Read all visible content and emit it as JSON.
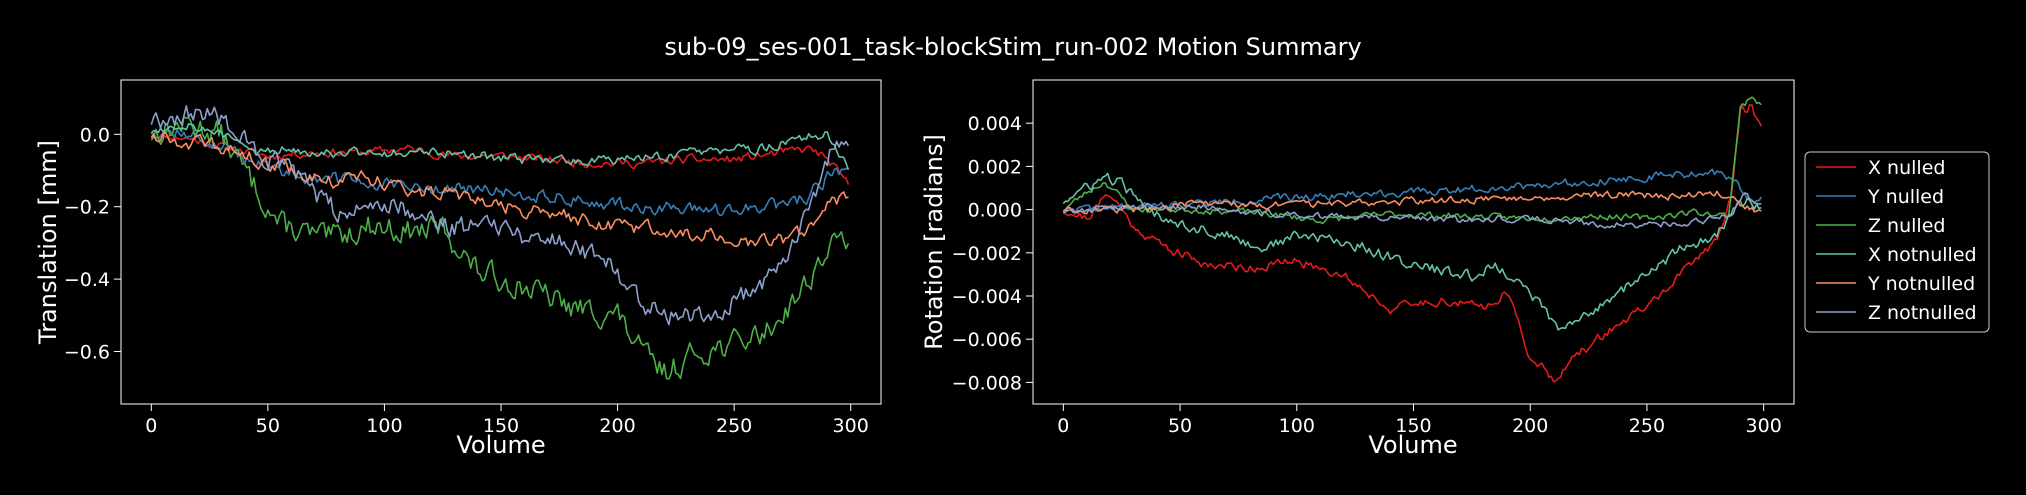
{
  "figure": {
    "title": "sub-09_ses-001_task-blockStim_run-002 Motion Summary"
  },
  "chart_data": [
    {
      "type": "line",
      "xlabel": "Volume",
      "ylabel": "Translation [mm]",
      "xlim": [
        -13,
        313
      ],
      "ylim": [
        -0.745,
        0.15
      ],
      "xticks": [
        0,
        50,
        100,
        150,
        200,
        250,
        300
      ],
      "yticks": [
        0.0,
        -0.2,
        -0.4,
        -0.6
      ],
      "ytick_labels": [
        "0.0",
        "−0.2",
        "−0.4",
        "−0.6"
      ],
      "grid": false,
      "series": [
        {
          "name": "X nulled",
          "color": "#e41a1c",
          "anchors": [
            [
              0,
              0.0
            ],
            [
              15,
              -0.01
            ],
            [
              35,
              -0.04
            ],
            [
              50,
              -0.06
            ],
            [
              70,
              -0.05
            ],
            [
              90,
              -0.05
            ],
            [
              110,
              -0.04
            ],
            [
              130,
              -0.06
            ],
            [
              150,
              -0.06
            ],
            [
              170,
              -0.07
            ],
            [
              190,
              -0.08
            ],
            [
              210,
              -0.08
            ],
            [
              230,
              -0.07
            ],
            [
              250,
              -0.07
            ],
            [
              270,
              -0.05
            ],
            [
              283,
              -0.04
            ],
            [
              290,
              -0.07
            ],
            [
              299,
              -0.14
            ]
          ],
          "noise": 0.012,
          "seed": 11
        },
        {
          "name": "Y nulled",
          "color": "#377eb8",
          "anchors": [
            [
              0,
              0.01
            ],
            [
              15,
              0.0
            ],
            [
              35,
              -0.05
            ],
            [
              50,
              -0.09
            ],
            [
              70,
              -0.12
            ],
            [
              90,
              -0.13
            ],
            [
              110,
              -0.15
            ],
            [
              130,
              -0.15
            ],
            [
              150,
              -0.16
            ],
            [
              170,
              -0.17
            ],
            [
              190,
              -0.19
            ],
            [
              210,
              -0.2
            ],
            [
              230,
              -0.21
            ],
            [
              250,
              -0.21
            ],
            [
              265,
              -0.2
            ],
            [
              280,
              -0.18
            ],
            [
              290,
              -0.12
            ],
            [
              299,
              -0.09
            ]
          ],
          "noise": 0.018,
          "seed": 12
        },
        {
          "name": "Z nulled",
          "color": "#4daf4a",
          "anchors": [
            [
              0,
              0.0
            ],
            [
              15,
              0.03
            ],
            [
              30,
              0.0
            ],
            [
              40,
              -0.1
            ],
            [
              55,
              -0.25
            ],
            [
              75,
              -0.29
            ],
            [
              95,
              -0.25
            ],
            [
              110,
              -0.27
            ],
            [
              125,
              -0.26
            ],
            [
              140,
              -0.38
            ],
            [
              160,
              -0.42
            ],
            [
              180,
              -0.48
            ],
            [
              200,
              -0.5
            ],
            [
              210,
              -0.6
            ],
            [
              220,
              -0.66
            ],
            [
              235,
              -0.6
            ],
            [
              250,
              -0.58
            ],
            [
              265,
              -0.54
            ],
            [
              280,
              -0.42
            ],
            [
              290,
              -0.32
            ],
            [
              299,
              -0.28
            ]
          ],
          "noise": 0.035,
          "seed": 13
        },
        {
          "name": "X notnulled",
          "color": "#66c2a5",
          "anchors": [
            [
              0,
              0.01
            ],
            [
              15,
              0.03
            ],
            [
              30,
              0.0
            ],
            [
              45,
              -0.05
            ],
            [
              60,
              -0.04
            ],
            [
              80,
              -0.05
            ],
            [
              100,
              -0.05
            ],
            [
              120,
              -0.05
            ],
            [
              140,
              -0.06
            ],
            [
              160,
              -0.07
            ],
            [
              180,
              -0.07
            ],
            [
              200,
              -0.07
            ],
            [
              220,
              -0.06
            ],
            [
              240,
              -0.05
            ],
            [
              260,
              -0.04
            ],
            [
              280,
              -0.01
            ],
            [
              290,
              0.0
            ],
            [
              299,
              -0.1
            ]
          ],
          "noise": 0.014,
          "seed": 14
        },
        {
          "name": "Y notnulled",
          "color": "#fc8d62",
          "anchors": [
            [
              0,
              0.0
            ],
            [
              15,
              -0.02
            ],
            [
              30,
              -0.04
            ],
            [
              45,
              -0.07
            ],
            [
              60,
              -0.1
            ],
            [
              75,
              -0.13
            ],
            [
              90,
              -0.12
            ],
            [
              110,
              -0.15
            ],
            [
              130,
              -0.17
            ],
            [
              150,
              -0.2
            ],
            [
              170,
              -0.22
            ],
            [
              190,
              -0.24
            ],
            [
              210,
              -0.26
            ],
            [
              230,
              -0.27
            ],
            [
              250,
              -0.29
            ],
            [
              265,
              -0.3
            ],
            [
              280,
              -0.27
            ],
            [
              290,
              -0.2
            ],
            [
              299,
              -0.17
            ]
          ],
          "noise": 0.02,
          "seed": 15
        },
        {
          "name": "Z notnulled",
          "color": "#8da0cb",
          "anchors": [
            [
              0,
              0.04
            ],
            [
              10,
              0.05
            ],
            [
              20,
              0.06
            ],
            [
              30,
              0.05
            ],
            [
              40,
              -0.02
            ],
            [
              50,
              -0.07
            ],
            [
              60,
              -0.1
            ],
            [
              75,
              -0.2
            ],
            [
              85,
              -0.22
            ],
            [
              100,
              -0.18
            ],
            [
              115,
              -0.22
            ],
            [
              130,
              -0.26
            ],
            [
              145,
              -0.23
            ],
            [
              160,
              -0.28
            ],
            [
              175,
              -0.29
            ],
            [
              190,
              -0.33
            ],
            [
              200,
              -0.38
            ],
            [
              210,
              -0.46
            ],
            [
              225,
              -0.5
            ],
            [
              245,
              -0.48
            ],
            [
              260,
              -0.43
            ],
            [
              275,
              -0.3
            ],
            [
              285,
              -0.18
            ],
            [
              292,
              -0.05
            ],
            [
              299,
              -0.04
            ]
          ],
          "noise": 0.03,
          "seed": 16
        }
      ]
    },
    {
      "type": "line",
      "xlabel": "Volume",
      "ylabel": "Rotation [radians]",
      "xlim": [
        -13,
        313
      ],
      "ylim": [
        -0.009,
        0.006
      ],
      "xticks": [
        0,
        50,
        100,
        150,
        200,
        250,
        300
      ],
      "yticks": [
        0.004,
        0.002,
        0.0,
        -0.002,
        -0.004,
        -0.006,
        -0.008
      ],
      "ytick_labels": [
        "0.004",
        "0.002",
        "0.000",
        "−0.002",
        "−0.004",
        "−0.006",
        "−0.008"
      ],
      "grid": false,
      "legend": {
        "position": "right-outside",
        "entries": [
          "X nulled",
          "Y nulled",
          "Z nulled",
          "X notnulled",
          "Y notnulled",
          "Z notnulled"
        ]
      },
      "series": [
        {
          "name": "X nulled",
          "color": "#e41a1c",
          "anchors": [
            [
              0,
              0.0
            ],
            [
              10,
              -0.0004
            ],
            [
              20,
              0.0008
            ],
            [
              30,
              -0.0008
            ],
            [
              45,
              -0.0018
            ],
            [
              60,
              -0.0025
            ],
            [
              80,
              -0.0027
            ],
            [
              100,
              -0.0024
            ],
            [
              120,
              -0.003
            ],
            [
              140,
              -0.0046
            ],
            [
              160,
              -0.0042
            ],
            [
              180,
              -0.0045
            ],
            [
              190,
              -0.0038
            ],
            [
              200,
              -0.0068
            ],
            [
              210,
              -0.0078
            ],
            [
              220,
              -0.0068
            ],
            [
              235,
              -0.0055
            ],
            [
              250,
              -0.0045
            ],
            [
              265,
              -0.003
            ],
            [
              280,
              -0.0013
            ],
            [
              286,
              0.0005
            ],
            [
              290,
              0.0045
            ],
            [
              295,
              0.0048
            ],
            [
              299,
              0.0038
            ]
          ],
          "noise": 0.00022,
          "seed": 21
        },
        {
          "name": "Y nulled",
          "color": "#377eb8",
          "anchors": [
            [
              0,
              0.0
            ],
            [
              30,
              0.0001
            ],
            [
              60,
              0.0003
            ],
            [
              90,
              0.0005
            ],
            [
              120,
              0.0007
            ],
            [
              150,
              0.0008
            ],
            [
              180,
              0.001
            ],
            [
              210,
              0.0012
            ],
            [
              240,
              0.0014
            ],
            [
              260,
              0.0016
            ],
            [
              280,
              0.0017
            ],
            [
              288,
              0.0012
            ],
            [
              294,
              0.0005
            ],
            [
              299,
              0.0006
            ]
          ],
          "noise": 0.00018,
          "seed": 22
        },
        {
          "name": "Z nulled",
          "color": "#4daf4a",
          "anchors": [
            [
              0,
              0.0
            ],
            [
              10,
              0.0008
            ],
            [
              18,
              0.0013
            ],
            [
              30,
              0.0
            ],
            [
              50,
              0.0
            ],
            [
              80,
              -0.0001
            ],
            [
              110,
              -0.0005
            ],
            [
              140,
              -0.0002
            ],
            [
              170,
              -0.0003
            ],
            [
              200,
              -0.0004
            ],
            [
              230,
              -0.0003
            ],
            [
              250,
              -0.0004
            ],
            [
              270,
              -0.0001
            ],
            [
              285,
              -0.0003
            ],
            [
              290,
              0.0048
            ],
            [
              296,
              0.0052
            ],
            [
              299,
              0.0048
            ]
          ],
          "noise": 0.00015,
          "seed": 23
        },
        {
          "name": "X notnulled",
          "color": "#66c2a5",
          "anchors": [
            [
              0,
              0.0004
            ],
            [
              10,
              0.001
            ],
            [
              18,
              0.0015
            ],
            [
              25,
              0.0012
            ],
            [
              35,
              0.0
            ],
            [
              45,
              -0.0004
            ],
            [
              55,
              -0.0008
            ],
            [
              70,
              -0.0012
            ],
            [
              85,
              -0.0018
            ],
            [
              100,
              -0.0012
            ],
            [
              115,
              -0.0014
            ],
            [
              130,
              -0.0018
            ],
            [
              145,
              -0.0024
            ],
            [
              160,
              -0.0028
            ],
            [
              175,
              -0.0031
            ],
            [
              185,
              -0.0026
            ],
            [
              195,
              -0.0033
            ],
            [
              205,
              -0.0045
            ],
            [
              212,
              -0.0056
            ],
            [
              220,
              -0.0052
            ],
            [
              235,
              -0.004
            ],
            [
              250,
              -0.003
            ],
            [
              265,
              -0.0018
            ],
            [
              280,
              -0.0012
            ],
            [
              288,
              0.0001
            ],
            [
              294,
              0.0004
            ],
            [
              299,
              0.0
            ]
          ],
          "noise": 0.00025,
          "seed": 24
        },
        {
          "name": "Y notnulled",
          "color": "#fc8d62",
          "anchors": [
            [
              0,
              0.0
            ],
            [
              30,
              0.0
            ],
            [
              60,
              0.0003
            ],
            [
              90,
              0.0002
            ],
            [
              120,
              0.0003
            ],
            [
              150,
              0.0004
            ],
            [
              180,
              0.0005
            ],
            [
              210,
              0.0006
            ],
            [
              240,
              0.0007
            ],
            [
              260,
              0.0006
            ],
            [
              280,
              0.0008
            ],
            [
              290,
              0.0003
            ],
            [
              299,
              -0.0002
            ]
          ],
          "noise": 0.00016,
          "seed": 25
        },
        {
          "name": "Z notnulled",
          "color": "#8da0cb",
          "anchors": [
            [
              0,
              -0.0001
            ],
            [
              30,
              0.0002
            ],
            [
              60,
              0.0001
            ],
            [
              90,
              -0.0002
            ],
            [
              120,
              -0.0003
            ],
            [
              150,
              -0.0004
            ],
            [
              170,
              -0.0005
            ],
            [
              190,
              -0.0004
            ],
            [
              210,
              -0.0005
            ],
            [
              230,
              -0.0007
            ],
            [
              250,
              -0.0007
            ],
            [
              270,
              -0.0006
            ],
            [
              285,
              -0.0003
            ],
            [
              292,
              0.0007
            ],
            [
              299,
              0.0002
            ]
          ],
          "noise": 0.00016,
          "seed": 26
        }
      ]
    }
  ]
}
